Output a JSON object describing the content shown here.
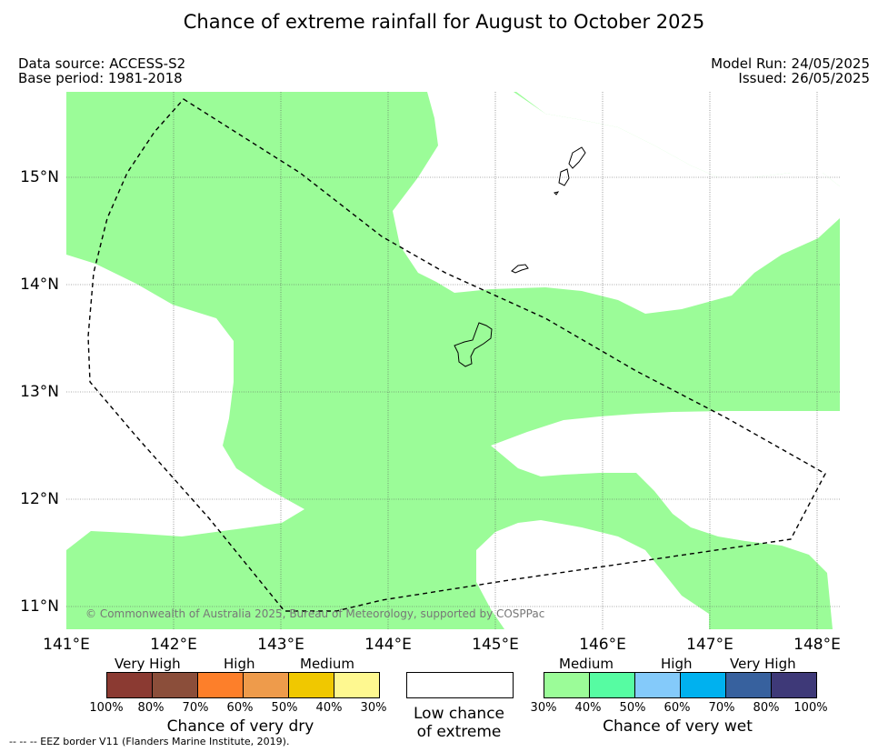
{
  "title": "Chance of extreme rainfall for August to October 2025",
  "data_source": "Data source: ACCESS-S2",
  "base_period": "Base period: 1981-2018",
  "model_run": "Model Run: 24/05/2025",
  "issued": "Issued: 26/05/2025",
  "copyright": "© Commonwealth of Australia 2025, Bureau of Meteorology, supported by COSPPac",
  "map": {
    "lat_labels": [
      "15°N",
      "14°N",
      "13°N",
      "12°N",
      "11°N"
    ],
    "lon_labels": [
      "141°E",
      "142°E",
      "143°E",
      "144°E",
      "145°E",
      "146°E",
      "147°E",
      "148°E"
    ],
    "fill_colors": {
      "medium_wet": "#9bfc98",
      "low": "#ffffff"
    }
  },
  "legend": {
    "dry": {
      "headers": [
        "Very High",
        "High",
        "Medium"
      ],
      "colors": [
        "#8b3a32",
        "#8b4e3a",
        "#fd7f2a",
        "#ee9b4b",
        "#f0c800",
        "#fef890"
      ],
      "ticks": [
        "100%",
        "80%",
        "70%",
        "60%",
        "50%",
        "40%",
        "30%"
      ],
      "title": "Chance of very dry"
    },
    "low": {
      "line1": "Low chance",
      "line2": "of extreme"
    },
    "wet": {
      "headers": [
        "Medium",
        "High",
        "Very High"
      ],
      "colors": [
        "#9bfc98",
        "#56fca2",
        "#84cafa",
        "#00b1ef",
        "#37619e",
        "#3e3978"
      ],
      "ticks": [
        "30%",
        "40%",
        "50%",
        "60%",
        "70%",
        "80%",
        "100%"
      ],
      "title": "Chance of very wet"
    }
  },
  "footnote": "--  --  -- EEZ border V11 (Flanders Marine Institute, 2019)."
}
